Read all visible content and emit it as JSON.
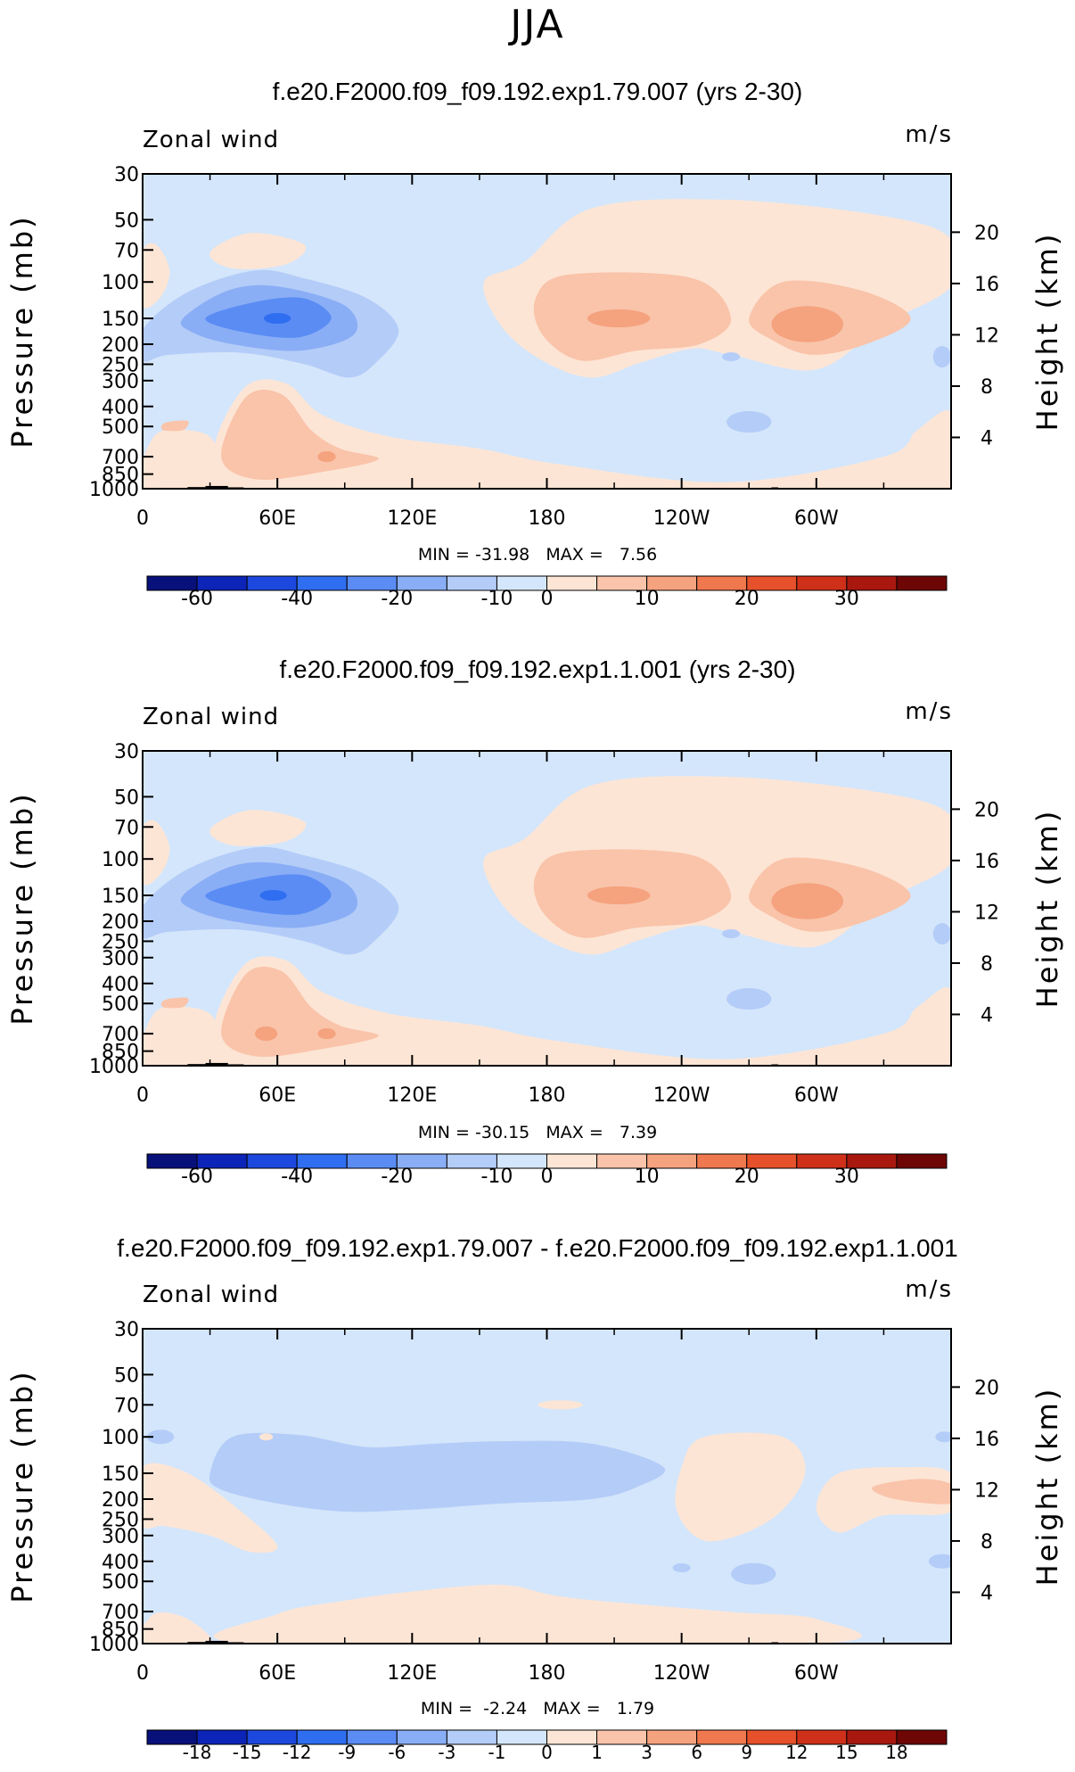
{
  "figure": {
    "season": "JJA",
    "colors": {
      "neg": [
        "#08107a",
        "#0c24b8",
        "#1d48de",
        "#2f6ef0",
        "#5a8cf4",
        "#8aaef5",
        "#b4ccf8",
        "#d4e6fb"
      ],
      "pos": [
        "#fde5d5",
        "#f9c4aa",
        "#f5a27e",
        "#f0784e",
        "#e6512b",
        "#cf301a",
        "#a8180f",
        "#6e0606"
      ],
      "axis": "#000000",
      "topo": "#000000"
    }
  },
  "chart_data": [
    {
      "type": "heatmap",
      "title": "f.e20.F2000.f09_f09.192.exp1.79.007 (yrs 2-30)",
      "left_label": "Zonal wind",
      "right_label": "m/s",
      "xlabel": "",
      "ylabel": "Pressure (mb)",
      "ylabel_right": "Height (km)",
      "x_ticks": [
        "0",
        "60E",
        "120E",
        "180",
        "120W",
        "60W"
      ],
      "x_tick_values": [
        0,
        60,
        120,
        180,
        240,
        300
      ],
      "xlim": [
        0,
        360
      ],
      "y_ticks": [
        "30",
        "50",
        "70",
        "100",
        "150",
        "200",
        "250",
        "300",
        "400",
        "500",
        "700",
        "850",
        "1000"
      ],
      "y_tick_values": [
        30,
        50,
        70,
        100,
        150,
        200,
        250,
        300,
        400,
        500,
        700,
        850,
        1000
      ],
      "ylim": [
        1000,
        30
      ],
      "height_ticks": [
        "4",
        "8",
        "12",
        "16",
        "20"
      ],
      "height_tick_values": [
        4,
        8,
        12,
        16,
        20
      ],
      "min_max_text": "MIN = -31.98   MAX =   7.56",
      "min": -31.98,
      "max": 7.56,
      "colorbar_labels": [
        "-60",
        "-40",
        "-20",
        "-10",
        "0",
        "10",
        "20",
        "30"
      ],
      "features": [
        {
          "name": "jet-core-1",
          "lon": 60,
          "p": 150,
          "value": -31.98
        },
        {
          "name": "westerly-max-1",
          "lon": 210,
          "p": 150,
          "value": 7.56
        },
        {
          "name": "westerly-max-2",
          "lon": 295,
          "p": 150,
          "value": 7.0
        }
      ]
    },
    {
      "type": "heatmap",
      "title": "f.e20.F2000.f09_f09.192.exp1.1.001 (yrs 2-30)",
      "left_label": "Zonal wind",
      "right_label": "m/s",
      "xlabel": "",
      "ylabel": "Pressure (mb)",
      "ylabel_right": "Height (km)",
      "x_ticks": [
        "0",
        "60E",
        "120E",
        "180",
        "120W",
        "60W"
      ],
      "x_tick_values": [
        0,
        60,
        120,
        180,
        240,
        300
      ],
      "xlim": [
        0,
        360
      ],
      "y_ticks": [
        "30",
        "50",
        "70",
        "100",
        "150",
        "200",
        "250",
        "300",
        "400",
        "500",
        "700",
        "850",
        "1000"
      ],
      "y_tick_values": [
        30,
        50,
        70,
        100,
        150,
        200,
        250,
        300,
        400,
        500,
        700,
        850,
        1000
      ],
      "ylim": [
        1000,
        30
      ],
      "height_ticks": [
        "4",
        "8",
        "12",
        "16",
        "20"
      ],
      "height_tick_values": [
        4,
        8,
        12,
        16,
        20
      ],
      "min_max_text": "MIN = -30.15   MAX =   7.39",
      "min": -30.15,
      "max": 7.39,
      "colorbar_labels": [
        "-60",
        "-40",
        "-20",
        "-10",
        "0",
        "10",
        "20",
        "30"
      ],
      "features": [
        {
          "name": "jet-core-1",
          "lon": 60,
          "p": 150,
          "value": -30.15
        },
        {
          "name": "westerly-max-1",
          "lon": 210,
          "p": 150,
          "value": 7.39
        },
        {
          "name": "westerly-max-2",
          "lon": 295,
          "p": 150,
          "value": 7.0
        }
      ]
    },
    {
      "type": "heatmap",
      "title": "f.e20.F2000.f09_f09.192.exp1.79.007 - f.e20.F2000.f09_f09.192.exp1.1.001",
      "left_label": "Zonal wind",
      "right_label": "m/s",
      "xlabel": "",
      "ylabel": "Pressure (mb)",
      "ylabel_right": "Height (km)",
      "x_ticks": [
        "0",
        "60E",
        "120E",
        "180",
        "120W",
        "60W"
      ],
      "x_tick_values": [
        0,
        60,
        120,
        180,
        240,
        300
      ],
      "xlim": [
        0,
        360
      ],
      "y_ticks": [
        "30",
        "50",
        "70",
        "100",
        "150",
        "200",
        "250",
        "300",
        "400",
        "500",
        "700",
        "850",
        "1000"
      ],
      "y_tick_values": [
        30,
        50,
        70,
        100,
        150,
        200,
        250,
        300,
        400,
        500,
        700,
        850,
        1000
      ],
      "ylim": [
        1000,
        30
      ],
      "height_ticks": [
        "4",
        "8",
        "12",
        "16",
        "20"
      ],
      "height_tick_values": [
        4,
        8,
        12,
        16,
        20
      ],
      "min_max_text": "MIN =  -2.24   MAX =   1.79",
      "min": -2.24,
      "max": 1.79,
      "colorbar_labels": [
        "-18",
        "-15",
        "-12",
        "-9",
        "-6",
        "-3",
        "-1",
        "0",
        "1",
        "3",
        "6",
        "9",
        "12",
        "15",
        "18"
      ],
      "features": [
        {
          "name": "diff-min",
          "lon": 120,
          "p": 150,
          "value": -2.24
        },
        {
          "name": "diff-max",
          "lon": 340,
          "p": 180,
          "value": 1.79
        }
      ]
    }
  ]
}
